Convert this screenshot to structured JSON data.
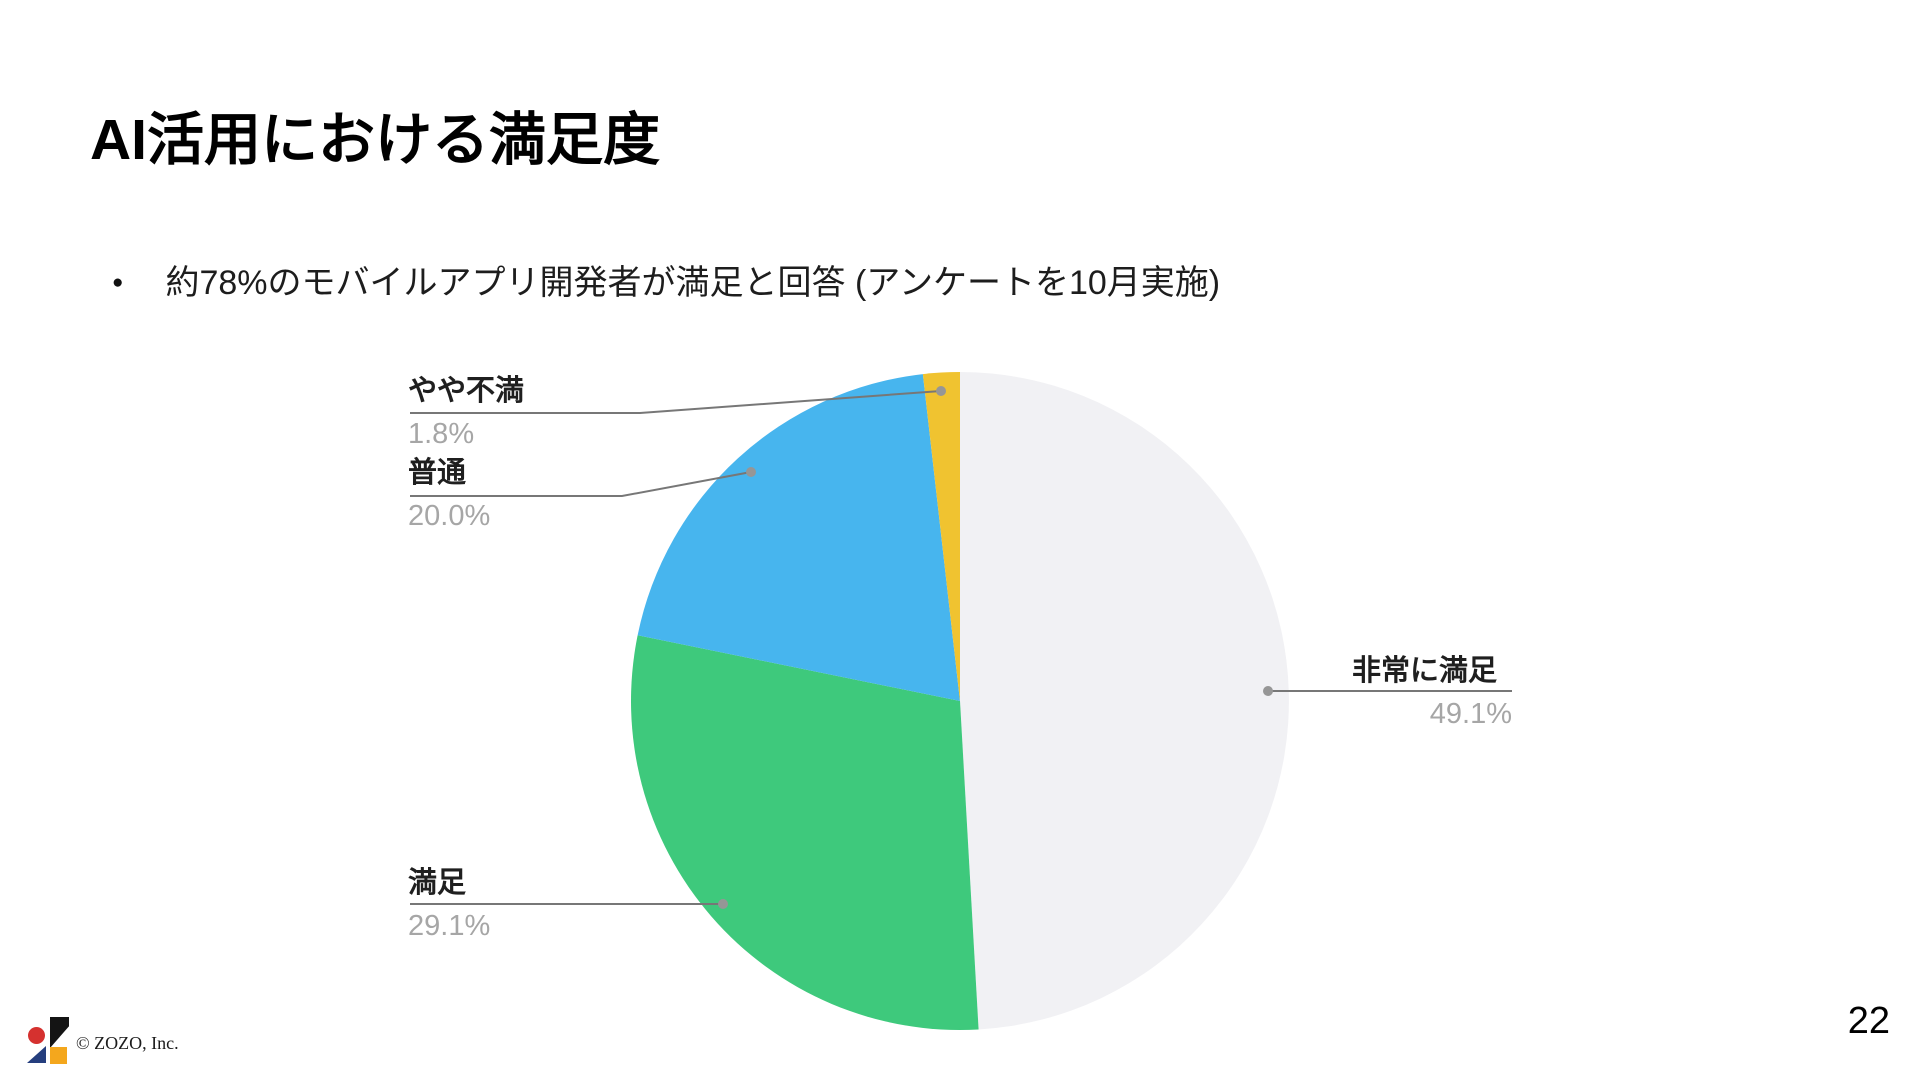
{
  "slide": {
    "title": "AI活用における満足度",
    "bullet_marker": "●",
    "bullet_text": "約78%のモバイルアプリ開発者が満足と回答 (アンケートを10月実施)",
    "page_number": "22",
    "copyright": "© ZOZO, Inc."
  },
  "chart_data": {
    "type": "pie",
    "title": "AI活用における満足度",
    "unit": "%",
    "total": 100,
    "start_angle_deg": 0,
    "direction": "clockwise",
    "legend_position": "callout-labels",
    "slices": [
      {
        "label": "非常に満足",
        "name": "very-satisfied",
        "value": 49.1,
        "pct_label": "49.1%",
        "color": "#F1F1F4"
      },
      {
        "label": "満足",
        "name": "satisfied",
        "value": 29.1,
        "pct_label": "29.1%",
        "color": "#3EC97C"
      },
      {
        "label": "普通",
        "name": "neutral",
        "value": 20.0,
        "pct_label": "20.0%",
        "color": "#47B5EE"
      },
      {
        "label": "やや不満",
        "name": "slightly-dissatisfied",
        "value": 1.8,
        "pct_label": "1.8%",
        "color": "#F0C330"
      }
    ],
    "style": {
      "label_color": "#1F1F1F",
      "percent_color": "#A6A6A6",
      "leader_line_color": "#777777",
      "leader_dot_color": "#969696"
    }
  },
  "logo": {
    "name": "ZOZO logo",
    "shapes": [
      {
        "name": "red-circle",
        "color": "#D5312F"
      },
      {
        "name": "black-triangle",
        "color": "#141414"
      },
      {
        "name": "navy-triangle",
        "color": "#253E7E"
      },
      {
        "name": "yellow-square",
        "color": "#F4A71D"
      }
    ]
  }
}
